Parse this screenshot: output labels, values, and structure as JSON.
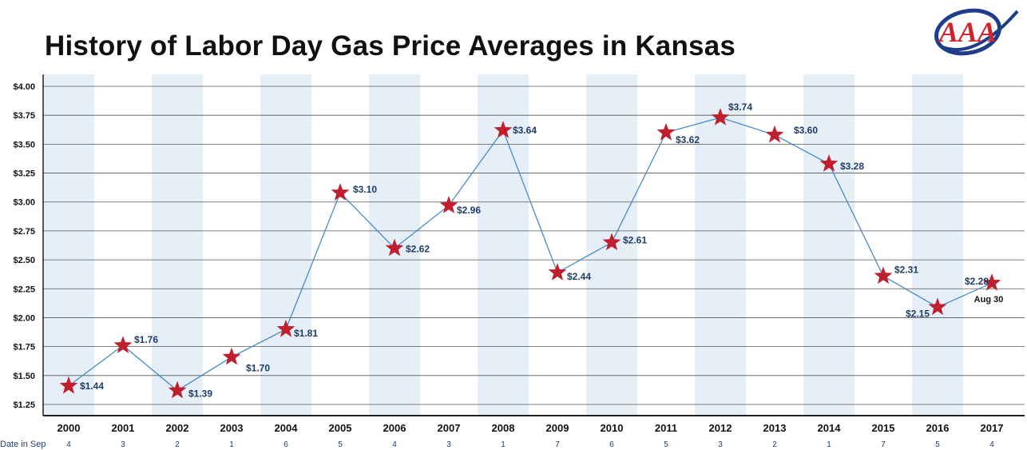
{
  "title": "History of Labor Day Gas Price Averages in Kansas",
  "logo": {
    "text": "AAA",
    "color": "#d2232a",
    "ring_color": "#1f3d8a"
  },
  "colors": {
    "line": "#3a85c8",
    "marker": "#c0202e",
    "band": "#e6eef8",
    "grid": "#555555",
    "label": "#1f3d6b"
  },
  "date_row_label": "Date in Sep",
  "chart_data": {
    "type": "line",
    "title": "History of Labor Day Gas Price Averages in Kansas",
    "xlabel": "",
    "ylabel": "",
    "ylim": [
      1.15,
      4.0
    ],
    "yticks": [
      1.25,
      1.5,
      1.75,
      2.0,
      2.25,
      2.5,
      2.75,
      3.0,
      3.25,
      3.5,
      3.75,
      4.0
    ],
    "ytick_labels": [
      "$1.25",
      "$1.50",
      "$1.75",
      "$2.00",
      "$2.25",
      "$2.50",
      "$2.75",
      "$3.00",
      "$3.25",
      "$3.50",
      "$3.75",
      "$4.00"
    ],
    "grid": true,
    "categories": [
      "2000",
      "2001",
      "2002",
      "2003",
      "2004",
      "2005",
      "2006",
      "2007",
      "2008",
      "2009",
      "2010",
      "2011",
      "2012",
      "2013",
      "2014",
      "2015",
      "2016",
      "2017"
    ],
    "values": [
      1.44,
      1.76,
      1.39,
      1.7,
      1.81,
      3.1,
      2.62,
      2.96,
      3.64,
      2.44,
      2.61,
      3.62,
      3.74,
      3.6,
      3.28,
      2.31,
      2.15,
      2.28
    ],
    "plotted_values": [
      1.41,
      1.76,
      1.37,
      1.66,
      1.9,
      3.08,
      2.6,
      2.97,
      3.62,
      2.39,
      2.65,
      3.6,
      3.73,
      3.58,
      3.33,
      2.36,
      2.09,
      2.3
    ],
    "value_labels": [
      "$1.44",
      "$1.76",
      "$1.39",
      "$1.70",
      "$1.81",
      "$3.10",
      "$2.62",
      "$2.96",
      "$3.64",
      "$2.44",
      "$2.61",
      "$3.62",
      "$3.74",
      "$3.60",
      "$3.28",
      "$2.31",
      "$2.15",
      "$2.28"
    ],
    "dates_in_sep": [
      "4",
      "3",
      "2",
      "1",
      "6",
      "5",
      "4",
      "3",
      "1",
      "7",
      "6",
      "5",
      "3",
      "2",
      "1",
      "7",
      "5",
      "4"
    ],
    "annotations": [
      {
        "category": "2017",
        "text": "Aug 30"
      }
    ]
  }
}
